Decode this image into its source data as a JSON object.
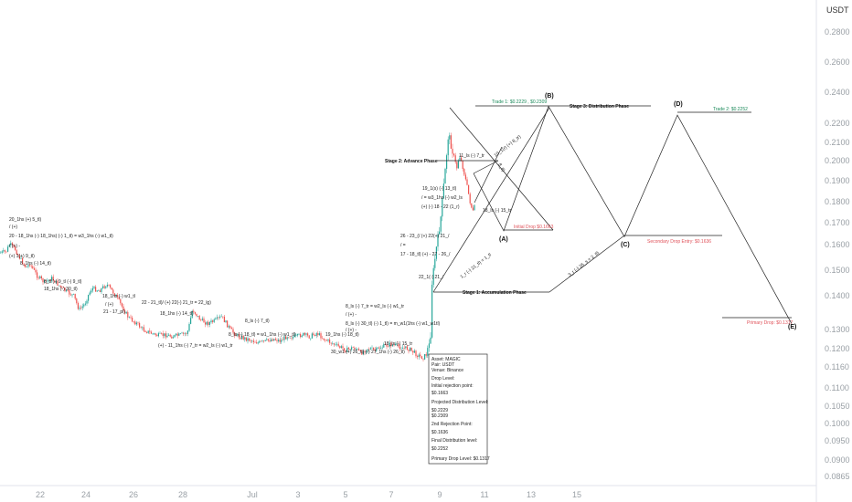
{
  "currency_label": "USDT",
  "chart_data": {
    "type": "line",
    "title": "",
    "y_axis": {
      "ticks": [
        "0.2800",
        "0.2600",
        "0.2400",
        "0.2200",
        "0.2100",
        "0.2000",
        "0.1900",
        "0.1800",
        "0.1700",
        "0.1600",
        "0.1500",
        "0.1400",
        "0.1300",
        "0.1200",
        "0.1160",
        "0.1100",
        "0.1050",
        "0.1000",
        "0.0950",
        "0.0900",
        "0.0865"
      ]
    },
    "x_axis": {
      "ticks": [
        "22",
        "24",
        "26",
        "28",
        "Jul",
        "3",
        "5",
        "7",
        "9",
        "11",
        "13",
        "15"
      ]
    },
    "series": [
      {
        "kind": "price-candles",
        "points": [
          {
            "x": 0,
            "y": 0.1568
          },
          {
            "x": 6,
            "y": 0.1572
          },
          {
            "x": 10,
            "y": 0.1602
          },
          {
            "x": 16,
            "y": 0.1581
          },
          {
            "x": 22,
            "y": 0.1542
          },
          {
            "x": 28,
            "y": 0.151
          },
          {
            "x": 32,
            "y": 0.1525
          },
          {
            "x": 40,
            "y": 0.1478
          },
          {
            "x": 48,
            "y": 0.1452
          },
          {
            "x": 56,
            "y": 0.1468
          },
          {
            "x": 64,
            "y": 0.144
          },
          {
            "x": 72,
            "y": 0.1415
          },
          {
            "x": 80,
            "y": 0.14
          },
          {
            "x": 86,
            "y": 0.1358
          },
          {
            "x": 92,
            "y": 0.1375
          },
          {
            "x": 100,
            "y": 0.143
          },
          {
            "x": 108,
            "y": 0.142
          },
          {
            "x": 116,
            "y": 0.1445
          },
          {
            "x": 124,
            "y": 0.141
          },
          {
            "x": 132,
            "y": 0.1372
          },
          {
            "x": 140,
            "y": 0.1335
          },
          {
            "x": 148,
            "y": 0.132
          },
          {
            "x": 156,
            "y": 0.13
          },
          {
            "x": 164,
            "y": 0.1282
          },
          {
            "x": 172,
            "y": 0.1268
          },
          {
            "x": 180,
            "y": 0.1272
          },
          {
            "x": 188,
            "y": 0.1264
          },
          {
            "x": 196,
            "y": 0.127
          },
          {
            "x": 204,
            "y": 0.1282
          },
          {
            "x": 210,
            "y": 0.136
          },
          {
            "x": 218,
            "y": 0.133
          },
          {
            "x": 226,
            "y": 0.1318
          },
          {
            "x": 234,
            "y": 0.1325
          },
          {
            "x": 242,
            "y": 0.1338
          },
          {
            "x": 250,
            "y": 0.1305
          },
          {
            "x": 258,
            "y": 0.127
          },
          {
            "x": 266,
            "y": 0.1255
          },
          {
            "x": 274,
            "y": 0.1245
          },
          {
            "x": 282,
            "y": 0.123
          },
          {
            "x": 290,
            "y": 0.1238
          },
          {
            "x": 298,
            "y": 0.1252
          },
          {
            "x": 306,
            "y": 0.124
          },
          {
            "x": 314,
            "y": 0.1268
          },
          {
            "x": 322,
            "y": 0.1258
          },
          {
            "x": 330,
            "y": 0.1275
          },
          {
            "x": 338,
            "y": 0.1262
          },
          {
            "x": 346,
            "y": 0.1282
          },
          {
            "x": 354,
            "y": 0.125
          },
          {
            "x": 362,
            "y": 0.123
          },
          {
            "x": 370,
            "y": 0.121
          },
          {
            "x": 378,
            "y": 0.1196
          },
          {
            "x": 386,
            "y": 0.1205
          },
          {
            "x": 394,
            "y": 0.119
          },
          {
            "x": 402,
            "y": 0.1202
          },
          {
            "x": 410,
            "y": 0.1195
          },
          {
            "x": 418,
            "y": 0.121
          },
          {
            "x": 426,
            "y": 0.1222
          },
          {
            "x": 432,
            "y": 0.1216
          },
          {
            "x": 440,
            "y": 0.1205
          },
          {
            "x": 448,
            "y": 0.1198
          },
          {
            "x": 456,
            "y": 0.1186
          },
          {
            "x": 462,
            "y": 0.118
          },
          {
            "x": 466,
            "y": 0.1188
          },
          {
            "x": 470,
            "y": 0.123
          },
          {
            "x": 472,
            "y": 0.145
          },
          {
            "x": 475,
            "y": 0.154
          },
          {
            "x": 478,
            "y": 0.162
          },
          {
            "x": 481,
            "y": 0.17
          },
          {
            "x": 484,
            "y": 0.184
          },
          {
            "x": 487,
            "y": 0.198
          },
          {
            "x": 490,
            "y": 0.215
          },
          {
            "x": 493,
            "y": 0.208
          },
          {
            "x": 496,
            "y": 0.202
          },
          {
            "x": 499,
            "y": 0.196
          },
          {
            "x": 502,
            "y": 0.203
          },
          {
            "x": 505,
            "y": 0.198
          },
          {
            "x": 508,
            "y": 0.192
          },
          {
            "x": 511,
            "y": 0.186
          },
          {
            "x": 514,
            "y": 0.179
          },
          {
            "x": 517,
            "y": 0.175
          },
          {
            "x": 520,
            "y": 0.18
          }
        ]
      },
      {
        "kind": "projection",
        "points": [
          {
            "label": "(A)",
            "x": 551,
            "y": 0.1663
          },
          {
            "label": "(B)",
            "x": 600,
            "y": 0.2309
          },
          {
            "label": "(C)",
            "x": 683,
            "y": 0.1636
          },
          {
            "label": "(D)",
            "x": 741,
            "y": 0.2252
          },
          {
            "label": "(E)",
            "x": 866,
            "y": 0.1317
          }
        ]
      }
    ],
    "levels": [
      {
        "text": "Trade 1: $0.2229 , $0.2309",
        "kind": "trade"
      },
      {
        "text": "Trade 2: $0.2252",
        "kind": "trade"
      },
      {
        "text": "Initial Drop $0.1663",
        "kind": "drop"
      },
      {
        "text": "Secondary Drop Entry: $0.1636",
        "kind": "drop"
      },
      {
        "text": "Primary Drop: $0.1317",
        "kind": "drop"
      }
    ],
    "stages": [
      "Stage 1: Accumulation Phase",
      "Stage 2: Advance Phase",
      "Stage 3: Distribution Phase"
    ],
    "point_labels": [
      "(A)",
      "(B)",
      "(C)",
      "(D)",
      "(E)"
    ],
    "annotations": [
      "20_1hs (+) 5_tl)",
      "/ (+)",
      "20 - 18_1hs (-) 18_1hs) (-) 1_tl) = w3_1hs (-) w1_tl)",
      "/ (+) -",
      "(+) 1(+) 9_tl)",
      "8_1hs (-) 14_tl)",
      "8_tl (-) 9_tl (-) 9_tl)",
      "18_1hs (-) 30_tl)",
      "18_1hs (-) w1_tl",
      "/ (+)",
      "21 - 17_pl)",
      "22 - 21_tl)/ (+) 22(-) 21_tr = 22_lg)",
      "18_1hs (-) 14_tl)",
      "(+) - 11_1hs (-) 7_tr = w2_ls (-) w1_tr",
      "8_ls (-) 7_tl)",
      "8_ls (-) 18_tl) = w1_1hs (-) w1_tl)",
      "8_ls (-) 7_tr = w2_ls (-) w1_tr",
      "/ (+) -",
      "8_ls (-) 30_tl) (-) 1_tl) = m_w1(1hs (-) w1_w1tl)",
      "/ (+) -",
      "19_1hs (-) 18_tl)",
      "18_ls (-) 15_tr",
      "30_w1 (+) 26_tl) (-) 27_1hs (-) 26_tl)",
      "26 - 23_(/ (+) 22(+) 21_/",
      "/ =",
      "17 - 18_tl) (+) - 27 - 26_/",
      "22_1(-) 21_/",
      "19_1(s) (-) 13_tl)",
      "/ = w3_1hs (-) w2_ls",
      "(+) (-) 18 - 22 (1_r)",
      "11_ls (-) 7_tr",
      "18_ls (-) 15_tr"
    ],
    "channel_labels": [
      "1_r (-) 21_tl) = 1_tl",
      "10_1(r) (+) 8_tr)",
      "8_tl)",
      "3_r (-) 26_s = 2_tl)"
    ],
    "info_box": {
      "lines": [
        "Asset: MAGIC",
        "Pair: USDT",
        "Venue: Binance",
        "Drop Level:",
        "Initial rejection point:",
        "$0.1663",
        "Projected Distribution Level:",
        "$0.2229",
        "$0.2309",
        "2nd Rejection Point:",
        "$0.1636",
        "Final Distribution level:",
        "$0.2252",
        "Primary Drop Level: $0.1317"
      ]
    }
  },
  "colors": {
    "up": "#26a69a",
    "down": "#ef5350",
    "trade": "#1b8a5a",
    "drop": "#e0525a",
    "line": "#222222",
    "axis_text": "#9aa0a6"
  }
}
